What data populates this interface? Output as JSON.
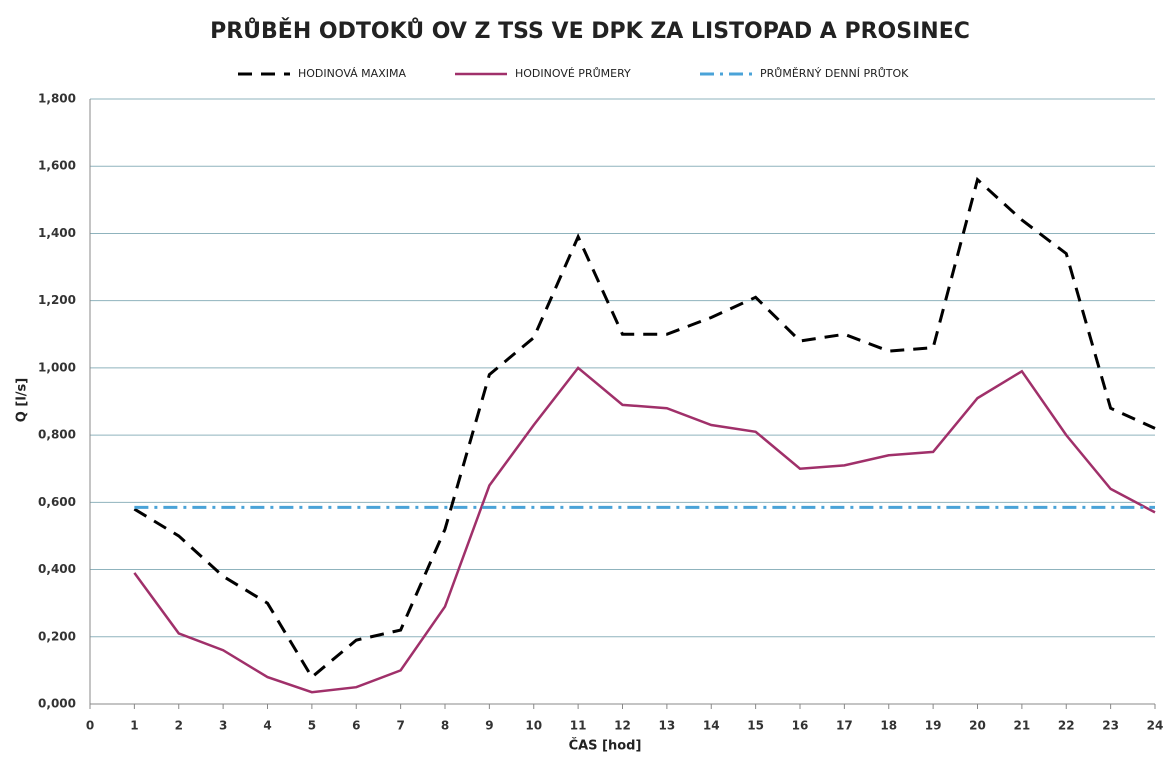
{
  "chart_data": {
    "type": "line",
    "title": "PRŮBĚH ODTOKŮ OV Z TSS VE DPK ZA LISTOPAD A PROSINEC",
    "x_label": "ČAS [hod]",
    "y_label": "Q [l/s]",
    "x": [
      1,
      2,
      3,
      4,
      5,
      6,
      7,
      8,
      9,
      10,
      11,
      12,
      13,
      14,
      15,
      16,
      17,
      18,
      19,
      20,
      21,
      22,
      23,
      24
    ],
    "series": [
      {
        "name": "HODINOVÁ MAXIMA",
        "color": "#000000",
        "line_style": "dashed",
        "values": [
          0.58,
          0.5,
          0.38,
          0.3,
          0.08,
          0.19,
          0.22,
          0.52,
          0.98,
          1.09,
          1.39,
          1.1,
          1.1,
          1.15,
          1.21,
          1.08,
          1.1,
          1.05,
          1.06,
          1.56,
          1.44,
          1.34,
          0.88,
          0.82
        ]
      },
      {
        "name": "HODINOVÉ PRŮMERY",
        "color": "#a0306a",
        "line_style": "solid",
        "values": [
          0.39,
          0.21,
          0.16,
          0.08,
          0.035,
          0.05,
          0.1,
          0.29,
          0.65,
          0.83,
          1.0,
          0.89,
          0.88,
          0.83,
          0.81,
          0.7,
          0.71,
          0.74,
          0.75,
          0.91,
          0.99,
          0.8,
          0.64,
          0.57
        ]
      },
      {
        "name": "PRŮMĚRNÝ DENNÍ PRŮTOK",
        "color": "#4aa3d8",
        "line_style": "dashdot",
        "values": [
          0.585,
          0.585,
          0.585,
          0.585,
          0.585,
          0.585,
          0.585,
          0.585,
          0.585,
          0.585,
          0.585,
          0.585,
          0.585,
          0.585,
          0.585,
          0.585,
          0.585,
          0.585,
          0.585,
          0.585,
          0.585,
          0.585,
          0.585,
          0.585
        ]
      }
    ],
    "xlim": [
      0,
      24
    ],
    "xticks": [
      0,
      1,
      2,
      3,
      4,
      5,
      6,
      7,
      8,
      9,
      10,
      11,
      12,
      13,
      14,
      15,
      16,
      17,
      18,
      19,
      20,
      21,
      22,
      23,
      24
    ],
    "ylim": [
      0,
      1.8
    ],
    "yticks": [
      {
        "value": 0,
        "label": "0,000"
      },
      {
        "value": 0.2,
        "label": "0,200"
      },
      {
        "value": 0.4,
        "label": "0,400"
      },
      {
        "value": 0.6,
        "label": "0,600"
      },
      {
        "value": 0.8,
        "label": "0,800"
      },
      {
        "value": 1.0,
        "label": "1,000"
      },
      {
        "value": 1.2,
        "label": "1,200"
      },
      {
        "value": 1.4,
        "label": "1,400"
      },
      {
        "value": 1.6,
        "label": "1,600"
      },
      {
        "value": 1.8,
        "label": "1,800"
      }
    ],
    "grid": true,
    "legend": "top"
  }
}
